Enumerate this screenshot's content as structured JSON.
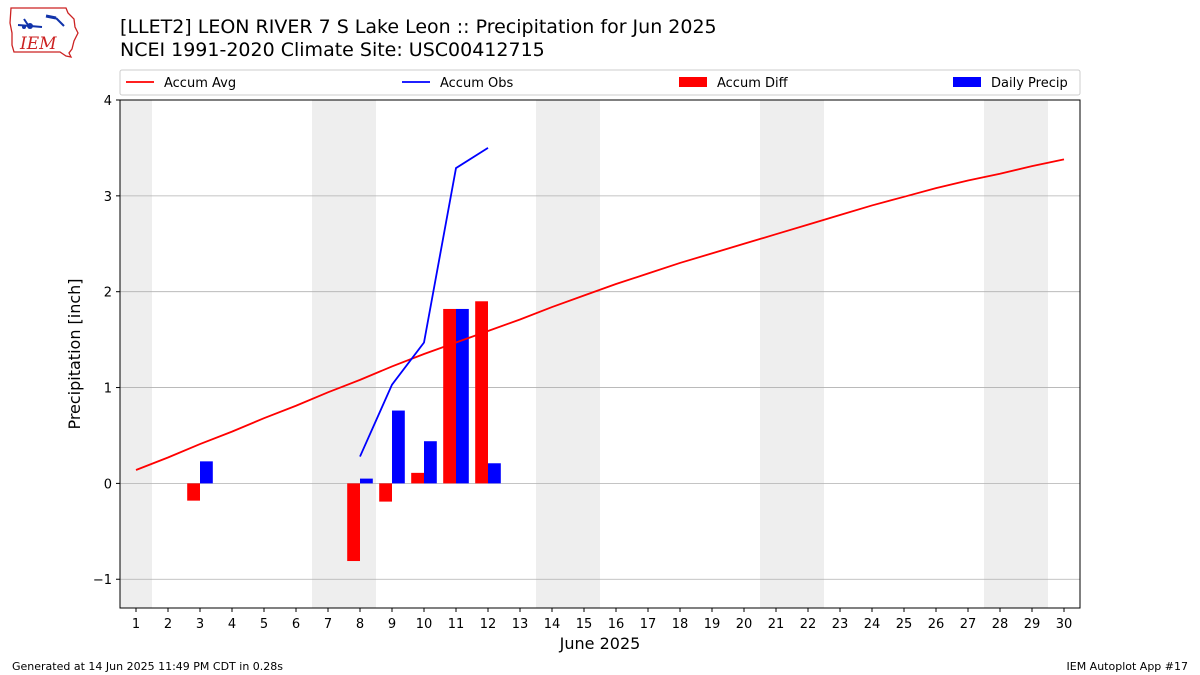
{
  "header": {
    "title": "[LLET2] LEON RIVER 7 S Lake Leon :: Precipitation for Jun 2025",
    "subtitle": "NCEI 1991-2020 Climate Site: USC00412715",
    "logo_text": "IEM"
  },
  "footer": {
    "generated": "Generated at 14 Jun 2025 11:49 PM CDT in 0.28s",
    "app": "IEM Autoplot App #17"
  },
  "chart_data": {
    "type": "bar",
    "xlabel": "June 2025",
    "ylabel": "Precipitation [inch]",
    "xlim": [
      0.5,
      30.5
    ],
    "ylim": [
      -1.3,
      4.0
    ],
    "x_ticks": [
      1,
      2,
      3,
      4,
      5,
      6,
      7,
      8,
      9,
      10,
      11,
      12,
      13,
      14,
      15,
      16,
      17,
      18,
      19,
      20,
      21,
      22,
      23,
      24,
      25,
      26,
      27,
      28,
      29,
      30
    ],
    "y_ticks": [
      -1,
      0,
      1,
      2,
      3,
      4
    ],
    "y_tick_labels": [
      "−1",
      "0",
      "1",
      "2",
      "3",
      "4"
    ],
    "grid": "horizontal",
    "legend_position": "top",
    "weekend_shading": [
      [
        0.5,
        1.5
      ],
      [
        6.5,
        8.5
      ],
      [
        13.5,
        15.5
      ],
      [
        20.5,
        22.5
      ],
      [
        27.5,
        29.5
      ]
    ],
    "colors": {
      "accum_avg": "#ff0000",
      "accum_obs": "#0000ff",
      "accum_diff": "#ff0000",
      "daily_precip": "#0000ff",
      "shade": "#eeeeee",
      "grid": "#b0b0b0"
    },
    "series": [
      {
        "name": "Accum Avg",
        "kind": "line",
        "color": "#ff0000",
        "x": [
          1,
          2,
          3,
          4,
          5,
          6,
          7,
          8,
          9,
          10,
          11,
          12,
          13,
          14,
          15,
          16,
          17,
          18,
          19,
          20,
          21,
          22,
          23,
          24,
          25,
          26,
          27,
          28,
          29,
          30
        ],
        "values": [
          0.14,
          0.27,
          0.41,
          0.54,
          0.68,
          0.81,
          0.95,
          1.08,
          1.22,
          1.35,
          1.47,
          1.59,
          1.71,
          1.84,
          1.96,
          2.08,
          2.19,
          2.3,
          2.4,
          2.5,
          2.6,
          2.7,
          2.8,
          2.9,
          2.99,
          3.08,
          3.16,
          3.23,
          3.31,
          3.38
        ]
      },
      {
        "name": "Accum Obs",
        "kind": "line",
        "color": "#0000ff",
        "x": [
          8,
          9,
          10,
          11,
          12
        ],
        "values": [
          0.28,
          1.03,
          1.47,
          3.29,
          3.5
        ]
      },
      {
        "name": "Accum Diff",
        "kind": "bar",
        "offset": -0.2,
        "color": "#ff0000",
        "x": [
          3,
          8,
          9,
          10,
          11,
          12
        ],
        "values": [
          -0.18,
          -0.81,
          -0.19,
          0.11,
          1.82,
          1.9
        ]
      },
      {
        "name": "Daily Precip",
        "kind": "bar",
        "offset": 0.2,
        "color": "#0000ff",
        "x": [
          3,
          8,
          9,
          10,
          11,
          12
        ],
        "values": [
          0.23,
          0.05,
          0.76,
          0.44,
          1.82,
          0.21
        ]
      }
    ]
  }
}
